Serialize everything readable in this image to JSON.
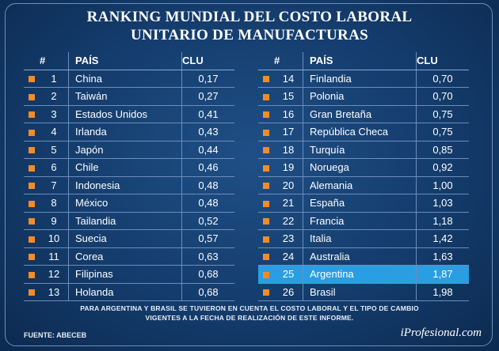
{
  "title_line1": "RANKING MUNDIAL DEL COSTO LABORAL",
  "title_line2": "UNITARIO DE MANUFACTURAS",
  "headers": {
    "num": "#",
    "pais": "PAÍS",
    "clu": "CLU"
  },
  "chart_data": {
    "type": "table",
    "title": "RANKING MUNDIAL DEL COSTO LABORAL UNITARIO DE MANUFACTURAS",
    "columns": [
      "#",
      "PAÍS",
      "CLU"
    ],
    "rows": [
      {
        "rank": "1",
        "country": "China",
        "clu": "0,17"
      },
      {
        "rank": "2",
        "country": "Taiwán",
        "clu": "0,27"
      },
      {
        "rank": "3",
        "country": "Estados Unidos",
        "clu": "0,41"
      },
      {
        "rank": "4",
        "country": "Irlanda",
        "clu": "0,43"
      },
      {
        "rank": "5",
        "country": "Japón",
        "clu": "0,44"
      },
      {
        "rank": "6",
        "country": "Chile",
        "clu": "0,46"
      },
      {
        "rank": "7",
        "country": "Indonesia",
        "clu": "0,48"
      },
      {
        "rank": "8",
        "country": "México",
        "clu": "0,48"
      },
      {
        "rank": "9",
        "country": "Tailandia",
        "clu": "0,52"
      },
      {
        "rank": "10",
        "country": "Suecia",
        "clu": "0,57"
      },
      {
        "rank": "11",
        "country": "Corea",
        "clu": "0,63"
      },
      {
        "rank": "12",
        "country": "Filipinas",
        "clu": "0,68"
      },
      {
        "rank": "13",
        "country": "Holanda",
        "clu": "0,68"
      },
      {
        "rank": "14",
        "country": "Finlandia",
        "clu": "0,70"
      },
      {
        "rank": "15",
        "country": "Polonia",
        "clu": "0,70"
      },
      {
        "rank": "16",
        "country": "Gran Bretaña",
        "clu": "0,75"
      },
      {
        "rank": "17",
        "country": "República Checa",
        "clu": "0,75"
      },
      {
        "rank": "18",
        "country": "Turquía",
        "clu": "0,85"
      },
      {
        "rank": "19",
        "country": "Noruega",
        "clu": "0,92"
      },
      {
        "rank": "20",
        "country": "Alemania",
        "clu": "1,00"
      },
      {
        "rank": "21",
        "country": "España",
        "clu": "1,03"
      },
      {
        "rank": "22",
        "country": "Francia",
        "clu": "1,18"
      },
      {
        "rank": "23",
        "country": "Italia",
        "clu": "1,42"
      },
      {
        "rank": "24",
        "country": "Australia",
        "clu": "1,63"
      },
      {
        "rank": "25",
        "country": "Argentina",
        "clu": "1,87",
        "highlight": true
      },
      {
        "rank": "26",
        "country": "Brasil",
        "clu": "1,98"
      }
    ]
  },
  "note_line1": "PARA ARGENTINA Y BRASIL SE TUVIERON EN CUENTA EL COSTO LABORAL Y EL TIPO DE CAMBIO",
  "note_line2": "VIGENTES A LA FECHA DE REALIZACIÓN DE ESTE INFORME.",
  "source": "FUENTE: ABECEB",
  "brand": "iProfesional.com",
  "colors": {
    "marker": "#f28c28",
    "highlight": "#2a9ee3",
    "background": "#143c6c"
  }
}
